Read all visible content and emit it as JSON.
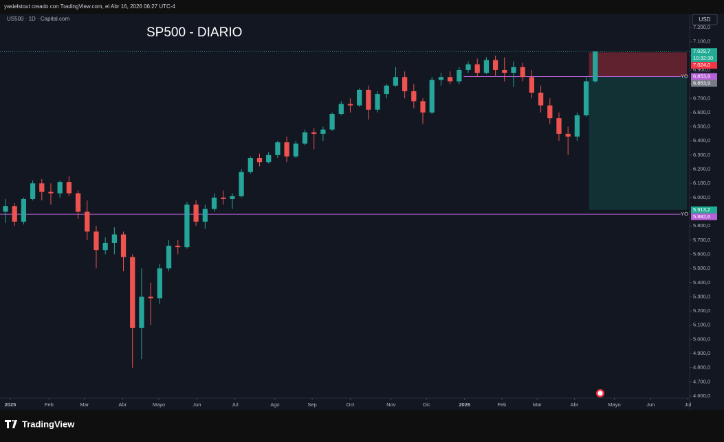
{
  "header": {
    "caption": "yasielstout creado con TradingView.com, el Abr 16, 2026 06:27 UTC-4"
  },
  "footer": {
    "brand": "TradingView"
  },
  "chart_data": {
    "type": "candlestick",
    "symbol": "US500 · 1D · Capital.com",
    "title": "SP500 - DIARIO",
    "currency": "USD",
    "up_color": "#26a69a",
    "down_color": "#ef5350",
    "xlim": [
      -0.606,
      75.4
    ],
    "xticks": [
      {
        "value": 0.53,
        "label": "2025"
      },
      {
        "value": 4.8,
        "label": "Feb"
      },
      {
        "value": 8.7,
        "label": "Mar"
      },
      {
        "value": 12.9,
        "label": "Abr"
      },
      {
        "value": 16.9,
        "label": "Mayo"
      },
      {
        "value": 21.1,
        "label": "Jun"
      },
      {
        "value": 25.3,
        "label": "Jul"
      },
      {
        "value": 29.7,
        "label": "Ago"
      },
      {
        "value": 33.8,
        "label": "Sep"
      },
      {
        "value": 38.0,
        "label": "Oct"
      },
      {
        "value": 42.5,
        "label": "Nov"
      },
      {
        "value": 46.4,
        "label": "Dic"
      },
      {
        "value": 50.6,
        "label": "2026"
      },
      {
        "value": 54.7,
        "label": "Feb"
      },
      {
        "value": 58.6,
        "label": "Mar"
      },
      {
        "value": 62.7,
        "label": "Abr"
      },
      {
        "value": 67.1,
        "label": "Mayo"
      },
      {
        "value": 71.1,
        "label": "Jun"
      },
      {
        "value": 75.2,
        "label": "Jul"
      }
    ],
    "ylim": [
      4600,
      7200
    ],
    "yticks": [
      {
        "value": 4600,
        "label": "4.600,0"
      },
      {
        "value": 4700,
        "label": "4.700,0"
      },
      {
        "value": 4800,
        "label": "4.800,0"
      },
      {
        "value": 4900,
        "label": "4.900,0"
      },
      {
        "value": 5000,
        "label": "5.000,0"
      },
      {
        "value": 5100,
        "label": "5.100,0"
      },
      {
        "value": 5200,
        "label": "5.200,0"
      },
      {
        "value": 5300,
        "label": "5.300,0"
      },
      {
        "value": 5400,
        "label": "5.400,0"
      },
      {
        "value": 5500,
        "label": "5.500,0"
      },
      {
        "value": 5600,
        "label": "5.600,0"
      },
      {
        "value": 5700,
        "label": "5.700,0"
      },
      {
        "value": 5800,
        "label": "5.800,0"
      },
      {
        "value": 5900,
        "label": "5.900,0"
      },
      {
        "value": 6000,
        "label": "6.000,0"
      },
      {
        "value": 6100,
        "label": "6.100,0"
      },
      {
        "value": 6200,
        "label": "6.200,0"
      },
      {
        "value": 6300,
        "label": "6.300,0"
      },
      {
        "value": 6400,
        "label": "6.400,0"
      },
      {
        "value": 6500,
        "label": "6.500,0"
      },
      {
        "value": 6600,
        "label": "6.600,0"
      },
      {
        "value": 6700,
        "label": "6.700,0"
      },
      {
        "value": 6800,
        "label": "6.800,0"
      },
      {
        "value": 6900,
        "label": "6.900,0"
      },
      {
        "value": 7000,
        "label": "7.000,0"
      },
      {
        "value": 7100,
        "label": "7.100,0"
      },
      {
        "value": 7200,
        "label": "7.200,0"
      }
    ],
    "ohlc": [
      [
        5900,
        5990,
        5820,
        5940
      ],
      [
        5940,
        5960,
        5800,
        5830
      ],
      [
        5830,
        6000,
        5810,
        5990
      ],
      [
        5990,
        6120,
        5980,
        6100
      ],
      [
        6100,
        6130,
        5980,
        6040
      ],
      [
        6040,
        6100,
        5950,
        6030
      ],
      [
        6030,
        6120,
        6000,
        6110
      ],
      [
        6110,
        6150,
        6010,
        6030
      ],
      [
        6030,
        6050,
        5850,
        5900
      ],
      [
        5900,
        5980,
        5700,
        5760
      ],
      [
        5760,
        5800,
        5500,
        5630
      ],
      [
        5630,
        5720,
        5600,
        5680
      ],
      [
        5680,
        5790,
        5600,
        5740
      ],
      [
        5740,
        5760,
        5480,
        5580
      ],
      [
        5580,
        5600,
        4800,
        5080
      ],
      [
        5080,
        5500,
        4860,
        5300
      ],
      [
        5300,
        5400,
        5100,
        5290
      ],
      [
        5290,
        5530,
        5250,
        5500
      ],
      [
        5500,
        5700,
        5480,
        5660
      ],
      [
        5660,
        5700,
        5600,
        5650
      ],
      [
        5650,
        5970,
        5640,
        5950
      ],
      [
        5950,
        5980,
        5800,
        5830
      ],
      [
        5830,
        5950,
        5780,
        5920
      ],
      [
        5920,
        6030,
        5900,
        6000
      ],
      [
        6000,
        6050,
        5950,
        5990
      ],
      [
        5990,
        6030,
        5920,
        6010
      ],
      [
        6010,
        6200,
        6000,
        6180
      ],
      [
        6180,
        6290,
        6170,
        6280
      ],
      [
        6280,
        6310,
        6220,
        6250
      ],
      [
        6250,
        6320,
        6240,
        6300
      ],
      [
        6300,
        6400,
        6280,
        6390
      ],
      [
        6390,
        6430,
        6250,
        6290
      ],
      [
        6290,
        6400,
        6280,
        6380
      ],
      [
        6380,
        6480,
        6370,
        6460
      ],
      [
        6460,
        6490,
        6340,
        6450
      ],
      [
        6450,
        6500,
        6400,
        6480
      ],
      [
        6480,
        6600,
        6470,
        6590
      ],
      [
        6590,
        6680,
        6580,
        6660
      ],
      [
        6660,
        6700,
        6600,
        6650
      ],
      [
        6650,
        6770,
        6640,
        6760
      ],
      [
        6760,
        6790,
        6550,
        6620
      ],
      [
        6620,
        6750,
        6600,
        6730
      ],
      [
        6730,
        6800,
        6700,
        6790
      ],
      [
        6790,
        6920,
        6780,
        6850
      ],
      [
        6850,
        6890,
        6700,
        6750
      ],
      [
        6750,
        6800,
        6630,
        6680
      ],
      [
        6680,
        6700,
        6520,
        6600
      ],
      [
        6600,
        6850,
        6590,
        6830
      ],
      [
        6830,
        6880,
        6790,
        6850
      ],
      [
        6850,
        6890,
        6800,
        6820
      ],
      [
        6820,
        6920,
        6800,
        6900
      ],
      [
        6900,
        6960,
        6880,
        6940
      ],
      [
        6940,
        6980,
        6850,
        6880
      ],
      [
        6880,
        6990,
        6870,
        6970
      ],
      [
        6970,
        7000,
        6860,
        6900
      ],
      [
        6900,
        6990,
        6820,
        6880
      ],
      [
        6880,
        6960,
        6780,
        6920
      ],
      [
        6920,
        6950,
        6820,
        6850
      ],
      [
        6850,
        6900,
        6700,
        6740
      ],
      [
        6740,
        6790,
        6600,
        6650
      ],
      [
        6650,
        6700,
        6520,
        6560
      ],
      [
        6560,
        6600,
        6400,
        6450
      ],
      [
        6450,
        6500,
        6300,
        6430
      ],
      [
        6430,
        6600,
        6400,
        6580
      ],
      [
        6580,
        6850,
        6570,
        6820
      ],
      [
        6820,
        7035,
        6810,
        7029.7
      ]
    ],
    "last_price": {
      "value": 7029.7,
      "label": "7.029,7",
      "countdown": "10:32:30",
      "color": "#22ab94"
    },
    "hlines": [
      {
        "value": 6853.9,
        "label": "6.853,9",
        "text": "YO",
        "color": "#b462d6",
        "start": 50.5
      },
      {
        "value": 5882.6,
        "label": "5.882,6",
        "text": "YO",
        "color": "#b462d6",
        "start": -0.606
      }
    ],
    "position": {
      "start": 64.3,
      "end": 75.1,
      "stop": {
        "value": 7024.0,
        "label": "7.024,0",
        "color": "#f23645"
      },
      "entry": {
        "value": 6853.9,
        "label": "6.853,9",
        "color": "#787b86"
      },
      "target": {
        "value": 5913.2,
        "label": "5.913,2",
        "color": "#22ab94"
      }
    }
  }
}
